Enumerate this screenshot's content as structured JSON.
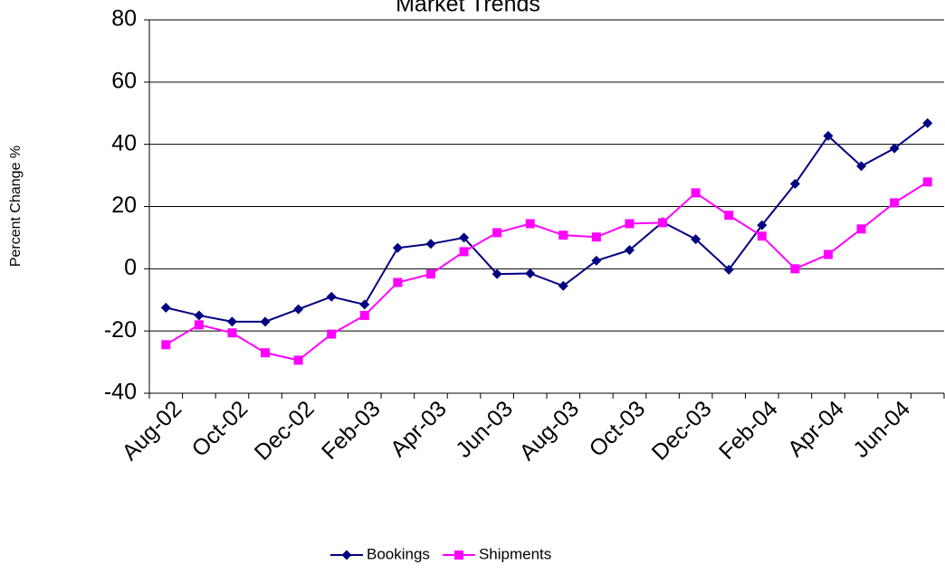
{
  "chart_data": {
    "type": "line",
    "title": "Market Trends",
    "y_label": "Percent Change %",
    "categories": [
      "Aug-02",
      null,
      "Oct-02",
      null,
      "Dec-02",
      null,
      "Feb-03",
      null,
      "Apr-03",
      null,
      "Jun-03",
      null,
      "Aug-03",
      null,
      "Oct-03",
      null,
      "Dec-03",
      null,
      "Feb-04",
      null,
      "Apr-04",
      null,
      "Jun-04",
      null
    ],
    "series": [
      {
        "name": "Bookings",
        "color": "#000080",
        "marker": "diamond",
        "values": [
          -12.5,
          -15,
          -17,
          -17,
          -13,
          -9,
          -11.5,
          6.7,
          8,
          10,
          -1.7,
          -1.5,
          -5.5,
          2.6,
          6,
          15,
          9.5,
          -0.3,
          14,
          27.3,
          42.7,
          33,
          38.7,
          46.8
        ]
      },
      {
        "name": "Shipments",
        "color": "#ff00ff",
        "marker": "square",
        "values": [
          -24.4,
          -18,
          -20.6,
          -27,
          -29.4,
          -21,
          -15,
          -4.4,
          -1.7,
          5.5,
          11.6,
          14.5,
          10.8,
          10.2,
          14.5,
          14.8,
          24.4,
          17.2,
          10.5,
          0,
          4.6,
          12.8,
          21.2,
          27.9
        ]
      }
    ],
    "ylim": [
      -40,
      80
    ],
    "yticks": [
      -40,
      -20,
      0,
      20,
      40,
      60,
      80
    ],
    "grid": true,
    "legend": "bottom"
  }
}
